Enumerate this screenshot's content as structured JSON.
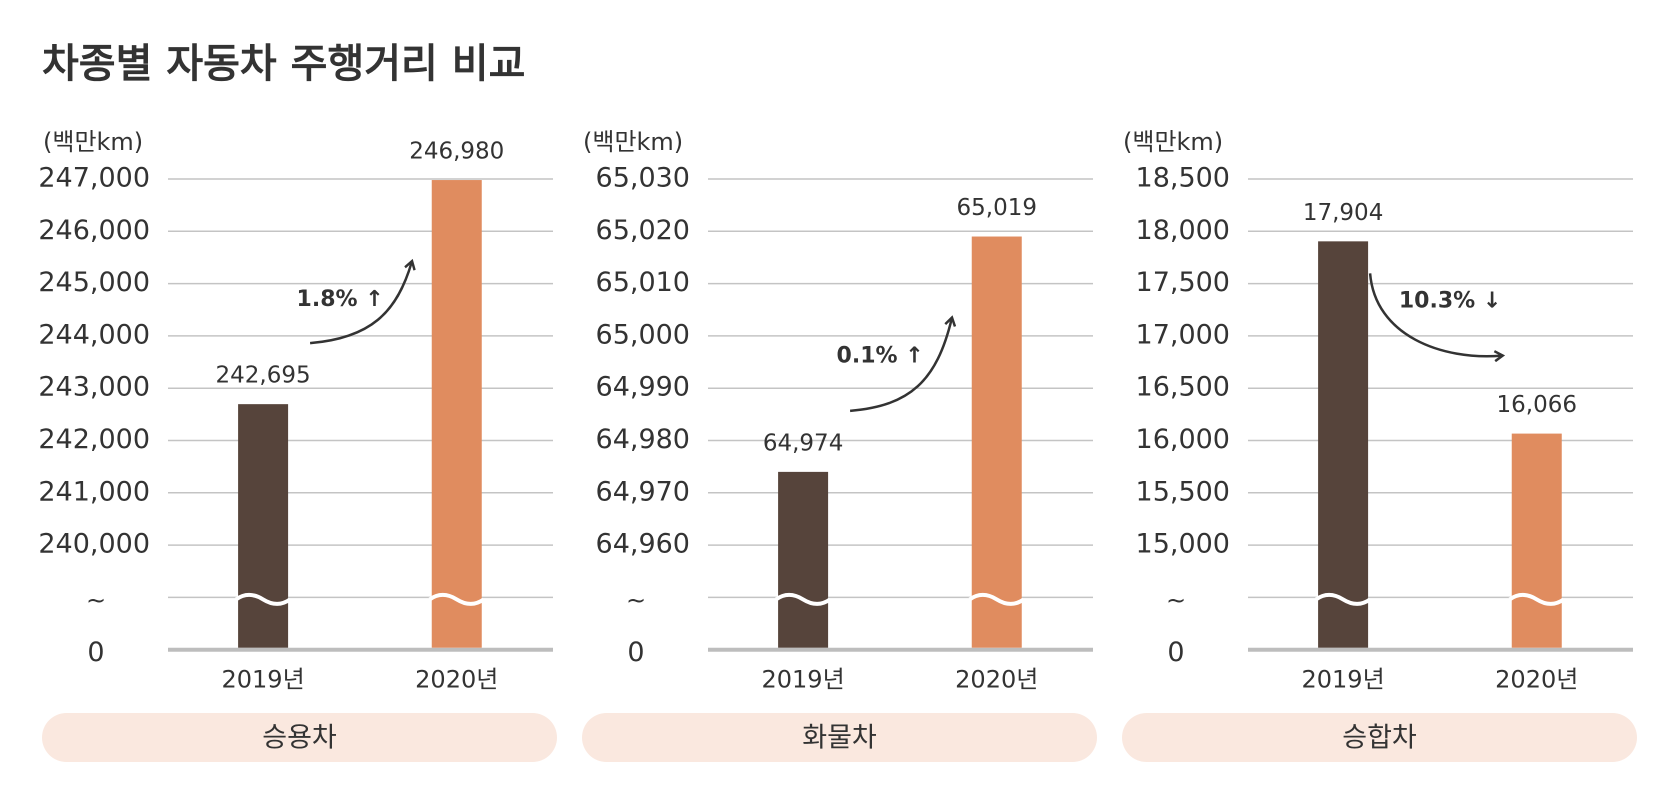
{
  "title": "차종별 자동차 주행거리 비교",
  "chart_data": [
    {
      "type": "bar",
      "unit_label": "(백만km)",
      "panel_label": "승용차",
      "categories": [
        "2019년",
        "2020년"
      ],
      "values": [
        242695,
        246980
      ],
      "value_labels": [
        "242,695",
        "246,980"
      ],
      "colors": [
        "#56443b",
        "#e08c5f"
      ],
      "ylim": [
        240000,
        247000
      ],
      "yticks": [
        {
          "value": 240000,
          "label": "240,000"
        },
        {
          "value": 241000,
          "label": "241,000"
        },
        {
          "value": 242000,
          "label": "242,000"
        },
        {
          "value": 243000,
          "label": "243,000"
        },
        {
          "value": 244000,
          "label": "244,000"
        },
        {
          "value": 245000,
          "label": "245,000"
        },
        {
          "value": 246000,
          "label": "246,000"
        },
        {
          "value": 247000,
          "label": "247,000"
        }
      ],
      "axis_break_label": "~",
      "zero_tick": 0,
      "annotation": "1.8% ↑",
      "grid": true
    },
    {
      "type": "bar",
      "unit_label": "(백만km)",
      "panel_label": "화물차",
      "categories": [
        "2019년",
        "2020년"
      ],
      "values": [
        64974,
        65019
      ],
      "value_labels": [
        "64,974",
        "65,019"
      ],
      "colors": [
        "#56443b",
        "#e08c5f"
      ],
      "ylim": [
        64960,
        65030
      ],
      "yticks": [
        {
          "value": 64960,
          "label": "64,960"
        },
        {
          "value": 64970,
          "label": "64,970"
        },
        {
          "value": 64980,
          "label": "64,980"
        },
        {
          "value": 64990,
          "label": "64,990"
        },
        {
          "value": 65000,
          "label": "65,000"
        },
        {
          "value": 65010,
          "label": "65,010"
        },
        {
          "value": 65020,
          "label": "65,020"
        },
        {
          "value": 65030,
          "label": "65,030"
        }
      ],
      "axis_break_label": "~",
      "zero_tick": 0,
      "annotation": "0.1% ↑",
      "grid": true
    },
    {
      "type": "bar",
      "unit_label": "(백만km)",
      "panel_label": "승합차",
      "categories": [
        "2019년",
        "2020년"
      ],
      "values": [
        17904,
        16066
      ],
      "value_labels": [
        "17,904",
        "16,066"
      ],
      "colors": [
        "#56443b",
        "#e08c5f"
      ],
      "ylim": [
        15000,
        18500
      ],
      "yticks": [
        {
          "value": 15000,
          "label": "15,000"
        },
        {
          "value": 15500,
          "label": "15,500"
        },
        {
          "value": 16000,
          "label": "16,000"
        },
        {
          "value": 16500,
          "label": "16,500"
        },
        {
          "value": 17000,
          "label": "17,000"
        },
        {
          "value": 17500,
          "label": "17,500"
        },
        {
          "value": 18000,
          "label": "18,000"
        },
        {
          "value": 18500,
          "label": "18,500"
        }
      ],
      "axis_break_label": "~",
      "zero_tick": 0,
      "annotation": "10.3% ↓",
      "grid": true
    }
  ]
}
